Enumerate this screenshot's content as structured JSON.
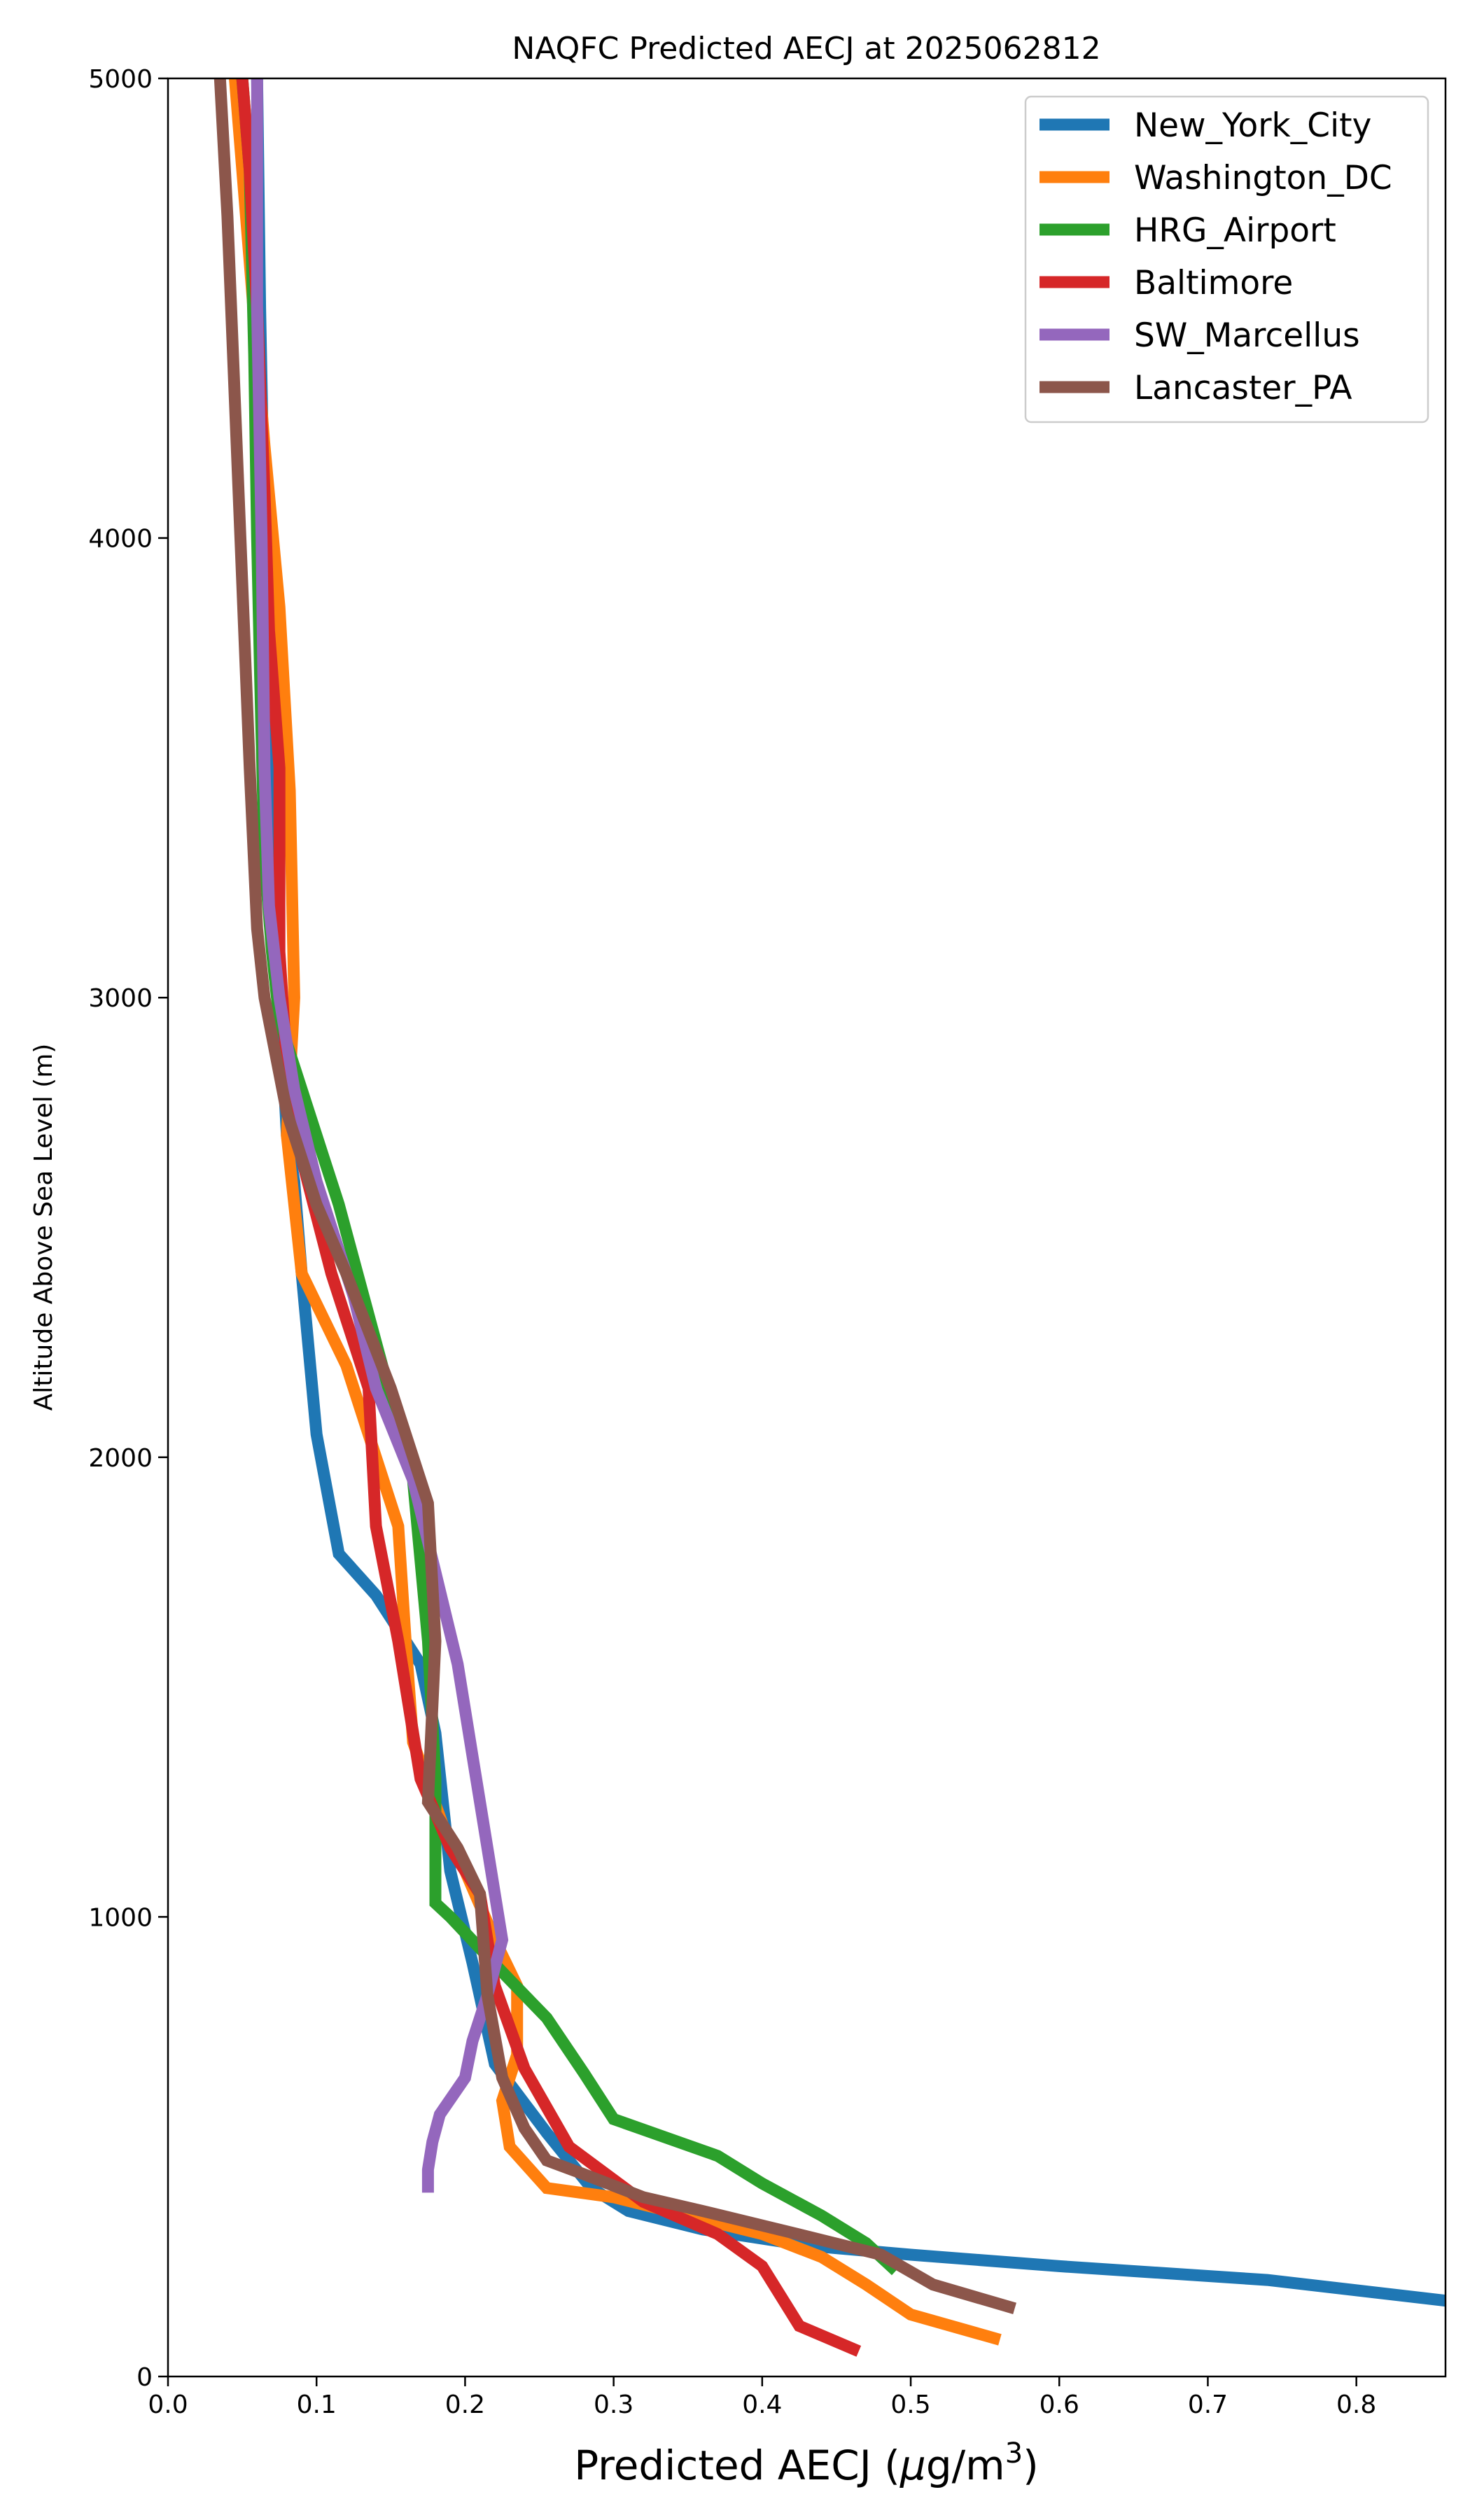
{
  "chart_data": {
    "type": "line",
    "title": "NAQFC Predicted AECJ at 2025062812",
    "xlabel_prefix": "Predicted AECJ (",
    "xlabel_mu": "μ",
    "xlabel_unit": "g/m",
    "xlabel_sup": "3",
    "xlabel_suffix": ")",
    "ylabel": "Altitude Above Sea Level (m)",
    "xlim": [
      0.0,
      0.86
    ],
    "ylim": [
      0,
      5000
    ],
    "xticks": [
      0.0,
      0.1,
      0.2,
      0.3,
      0.4,
      0.5,
      0.6,
      0.7,
      0.8
    ],
    "xtick_labels": [
      "0.0",
      "0.1",
      "0.2",
      "0.3",
      "0.4",
      "0.5",
      "0.6",
      "0.7",
      "0.8"
    ],
    "yticks": [
      0,
      1000,
      2000,
      3000,
      4000,
      5000
    ],
    "ytick_labels": [
      "0",
      "1000",
      "2000",
      "3000",
      "4000",
      "5000"
    ],
    "grid": false,
    "legend_position": "top-right",
    "series": [
      {
        "name": "New_York_City",
        "color": "#1f77b4",
        "points": [
          [
            0.86,
            165
          ],
          [
            0.74,
            210
          ],
          [
            0.6,
            240
          ],
          [
            0.5,
            265
          ],
          [
            0.43,
            285
          ],
          [
            0.36,
            320
          ],
          [
            0.31,
            360
          ],
          [
            0.285,
            410
          ],
          [
            0.255,
            530
          ],
          [
            0.22,
            680
          ],
          [
            0.205,
            900
          ],
          [
            0.19,
            1100
          ],
          [
            0.18,
            1400
          ],
          [
            0.17,
            1550
          ],
          [
            0.14,
            1700
          ],
          [
            0.115,
            1790
          ],
          [
            0.1,
            2050
          ],
          [
            0.09,
            2400
          ],
          [
            0.085,
            2600
          ],
          [
            0.08,
            2700
          ],
          [
            0.075,
            3000
          ],
          [
            0.07,
            3500
          ],
          [
            0.065,
            4000
          ],
          [
            0.062,
            4500
          ],
          [
            0.06,
            5000
          ]
        ]
      },
      {
        "name": "Washington_DC",
        "color": "#ff7f0e",
        "points": [
          [
            0.56,
            80
          ],
          [
            0.5,
            135
          ],
          [
            0.47,
            200
          ],
          [
            0.44,
            260
          ],
          [
            0.4,
            310
          ],
          [
            0.35,
            350
          ],
          [
            0.3,
            390
          ],
          [
            0.255,
            410
          ],
          [
            0.23,
            500
          ],
          [
            0.225,
            600
          ],
          [
            0.235,
            700
          ],
          [
            0.235,
            850
          ],
          [
            0.22,
            950
          ],
          [
            0.2,
            1100
          ],
          [
            0.185,
            1200
          ],
          [
            0.165,
            1380
          ],
          [
            0.16,
            1600
          ],
          [
            0.155,
            1850
          ],
          [
            0.12,
            2200
          ],
          [
            0.09,
            2400
          ],
          [
            0.08,
            2700
          ],
          [
            0.085,
            3000
          ],
          [
            0.082,
            3450
          ],
          [
            0.075,
            3850
          ],
          [
            0.065,
            4200
          ],
          [
            0.055,
            4600
          ],
          [
            0.045,
            5000
          ]
        ]
      },
      {
        "name": "HRG_Airport",
        "color": "#2ca02c",
        "points": [
          [
            0.49,
            230
          ],
          [
            0.47,
            290
          ],
          [
            0.44,
            350
          ],
          [
            0.4,
            420
          ],
          [
            0.37,
            480
          ],
          [
            0.3,
            560
          ],
          [
            0.28,
            660
          ],
          [
            0.255,
            780
          ],
          [
            0.225,
            880
          ],
          [
            0.19,
            1000
          ],
          [
            0.18,
            1030
          ],
          [
            0.18,
            1300
          ],
          [
            0.175,
            1600
          ],
          [
            0.165,
            1950
          ],
          [
            0.14,
            2250
          ],
          [
            0.115,
            2550
          ],
          [
            0.09,
            2800
          ],
          [
            0.075,
            2950
          ],
          [
            0.07,
            3100
          ],
          [
            0.065,
            3300
          ],
          [
            0.062,
            3700
          ],
          [
            0.06,
            4000
          ],
          [
            0.058,
            4400
          ],
          [
            0.055,
            4800
          ],
          [
            0.05,
            5000
          ]
        ]
      },
      {
        "name": "Baltimore",
        "color": "#d62728",
        "points": [
          [
            0.465,
            55
          ],
          [
            0.425,
            110
          ],
          [
            0.4,
            240
          ],
          [
            0.37,
            310
          ],
          [
            0.32,
            380
          ],
          [
            0.27,
            500
          ],
          [
            0.24,
            670
          ],
          [
            0.22,
            850
          ],
          [
            0.21,
            1050
          ],
          [
            0.19,
            1150
          ],
          [
            0.17,
            1300
          ],
          [
            0.155,
            1600
          ],
          [
            0.14,
            1850
          ],
          [
            0.135,
            2150
          ],
          [
            0.11,
            2400
          ],
          [
            0.09,
            2650
          ],
          [
            0.08,
            2850
          ],
          [
            0.075,
            3100
          ],
          [
            0.075,
            3500
          ],
          [
            0.068,
            3800
          ],
          [
            0.065,
            4100
          ],
          [
            0.06,
            4500
          ],
          [
            0.055,
            4800
          ],
          [
            0.05,
            5000
          ]
        ]
      },
      {
        "name": "SW_Marcellus",
        "color": "#9467bd",
        "points": [
          [
            0.175,
            400
          ],
          [
            0.175,
            450
          ],
          [
            0.178,
            510
          ],
          [
            0.183,
            570
          ],
          [
            0.2,
            650
          ],
          [
            0.205,
            730
          ],
          [
            0.215,
            830
          ],
          [
            0.225,
            950
          ],
          [
            0.215,
            1150
          ],
          [
            0.205,
            1350
          ],
          [
            0.195,
            1550
          ],
          [
            0.18,
            1750
          ],
          [
            0.165,
            1950
          ],
          [
            0.14,
            2150
          ],
          [
            0.125,
            2350
          ],
          [
            0.1,
            2600
          ],
          [
            0.085,
            2800
          ],
          [
            0.075,
            3000
          ],
          [
            0.068,
            3200
          ],
          [
            0.065,
            3500
          ],
          [
            0.063,
            4000
          ],
          [
            0.06,
            4500
          ],
          [
            0.06,
            5000
          ]
        ]
      },
      {
        "name": "Lancaster_PA",
        "color": "#8c564b",
        "points": [
          [
            0.57,
            148
          ],
          [
            0.515,
            200
          ],
          [
            0.48,
            265
          ],
          [
            0.43,
            305
          ],
          [
            0.36,
            360
          ],
          [
            0.32,
            390
          ],
          [
            0.28,
            440
          ],
          [
            0.255,
            470
          ],
          [
            0.24,
            540
          ],
          [
            0.225,
            650
          ],
          [
            0.215,
            830
          ],
          [
            0.21,
            1050
          ],
          [
            0.195,
            1150
          ],
          [
            0.175,
            1250
          ],
          [
            0.18,
            1600
          ],
          [
            0.175,
            1900
          ],
          [
            0.15,
            2150
          ],
          [
            0.12,
            2400
          ],
          [
            0.1,
            2550
          ],
          [
            0.08,
            2750
          ],
          [
            0.065,
            3000
          ],
          [
            0.06,
            3150
          ],
          [
            0.055,
            3500
          ],
          [
            0.05,
            3900
          ],
          [
            0.045,
            4300
          ],
          [
            0.04,
            4700
          ],
          [
            0.035,
            5000
          ]
        ]
      }
    ]
  }
}
